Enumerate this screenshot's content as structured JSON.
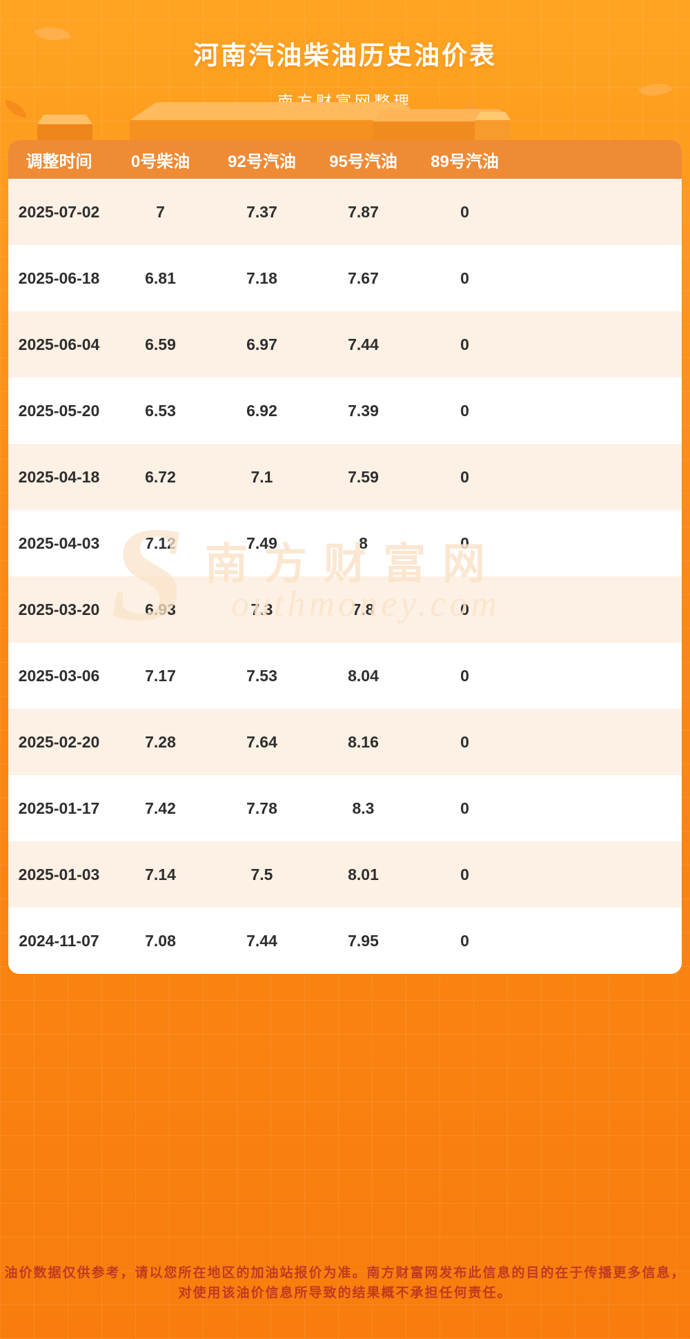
{
  "page": {
    "title": "河南汽油柴油历史油价表",
    "subtitle": "南方财富网整理"
  },
  "chart_data": {
    "type": "table",
    "title": "河南汽油柴油历史油价表",
    "subtitle": "南方财富网整理",
    "columns": [
      "调整时间",
      "0号柴油",
      "92号汽油",
      "95号汽油",
      "89号汽油"
    ],
    "rows": [
      [
        "2025-07-02",
        "7",
        "7.37",
        "7.87",
        "0"
      ],
      [
        "2025-06-18",
        "6.81",
        "7.18",
        "7.67",
        "0"
      ],
      [
        "2025-06-04",
        "6.59",
        "6.97",
        "7.44",
        "0"
      ],
      [
        "2025-05-20",
        "6.53",
        "6.92",
        "7.39",
        "0"
      ],
      [
        "2025-04-18",
        "6.72",
        "7.1",
        "7.59",
        "0"
      ],
      [
        "2025-04-03",
        "7.12",
        "7.49",
        "8",
        "0"
      ],
      [
        "2025-03-20",
        "6.93",
        "7.3",
        "7.8",
        "0"
      ],
      [
        "2025-03-06",
        "7.17",
        "7.53",
        "8.04",
        "0"
      ],
      [
        "2025-02-20",
        "7.28",
        "7.64",
        "8.16",
        "0"
      ],
      [
        "2025-01-17",
        "7.42",
        "7.78",
        "8.3",
        "0"
      ],
      [
        "2025-01-03",
        "7.14",
        "7.5",
        "8.01",
        "0"
      ],
      [
        "2024-11-07",
        "7.08",
        "7.44",
        "7.95",
        "0"
      ]
    ]
  },
  "watermark": {
    "initial": "S",
    "cn": "南方财富网",
    "en": "outhmoney.com"
  },
  "footer": {
    "text": "油价数据仅供参考，请以您所在地区的加油站报价为准。南方财富网发布此信息的目的在于传播更多信息，对使用该油价信息所导致的结果概不承担任何责任。"
  },
  "colors": {
    "background_top": "#ffa422",
    "background_bottom": "#f87d0e",
    "table_header": "#ef8a35",
    "row_alternate": "#fdf0e4",
    "title_text": "#ffffff",
    "footer_text": "#c03a21"
  }
}
